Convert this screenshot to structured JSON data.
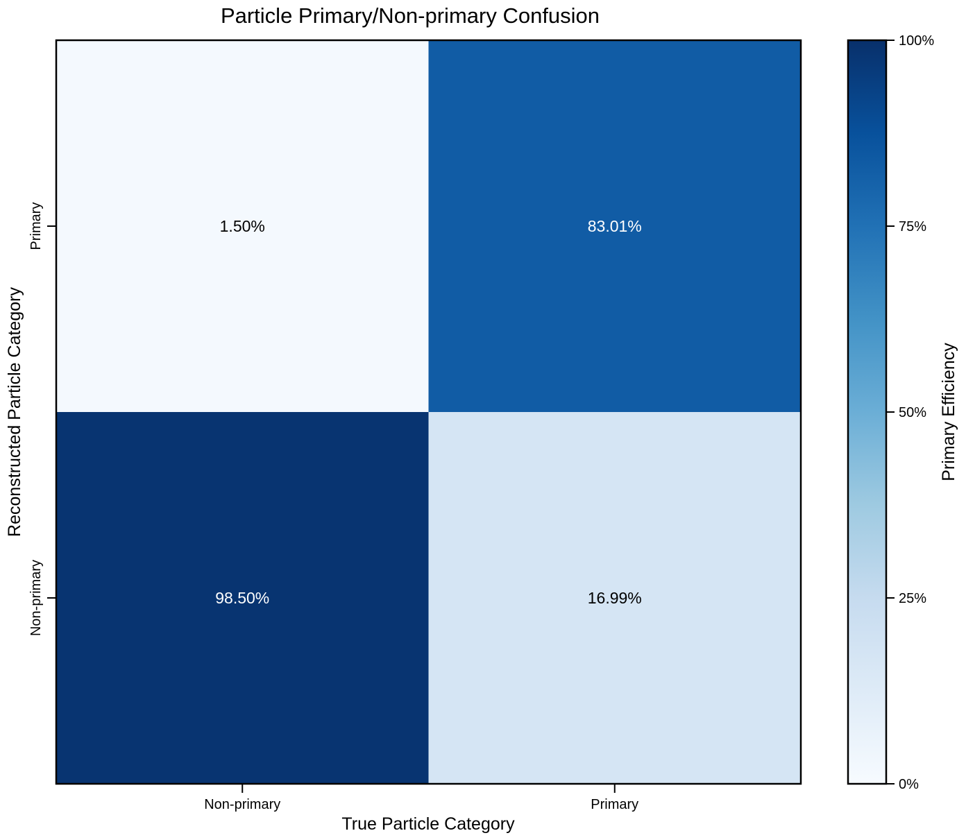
{
  "chart_data": {
    "type": "heatmap",
    "title": "Particle Primary/Non-primary Confusion",
    "xlabel": "True Particle Category",
    "ylabel": "Reconstructed Particle Category",
    "x_categories": [
      "Non-primary",
      "Primary"
    ],
    "y_categories": [
      "Primary",
      "Non-primary"
    ],
    "values": [
      [
        1.5,
        83.01
      ],
      [
        98.5,
        16.99
      ]
    ],
    "value_labels": [
      [
        "1.50%",
        "83.01%"
      ],
      [
        "98.50%",
        "16.99%"
      ]
    ],
    "colorbar": {
      "label": "Primary Efficiency",
      "range": [
        0,
        100
      ],
      "ticks": [
        0,
        25,
        50,
        75,
        100
      ],
      "tick_labels": [
        "0%",
        "25%",
        "50%",
        "75%",
        "100%"
      ],
      "colormap": "Blues"
    }
  }
}
